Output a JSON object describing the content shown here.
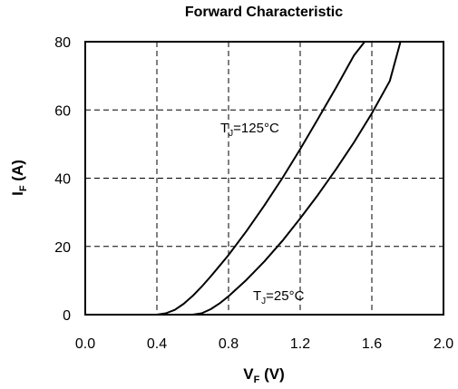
{
  "chart_data": {
    "type": "line",
    "title": "Forward Characteristic",
    "xlabel": {
      "main": "V",
      "sub": "F",
      "unit": " (V)"
    },
    "ylabel": {
      "main": "I",
      "sub": "F",
      "unit": " (A)"
    },
    "xlim": [
      0.0,
      2.0
    ],
    "ylim": [
      0,
      80
    ],
    "x_ticks": [
      "0.0",
      "0.4",
      "0.8",
      "1.2",
      "1.6",
      "2.0"
    ],
    "y_ticks": [
      "0",
      "20",
      "40",
      "60",
      "80"
    ],
    "grid": true,
    "grid_style": "dashed",
    "series": [
      {
        "name_main": "T",
        "name_sub": "J",
        "name_rest": "=125°C",
        "x": [
          0.4,
          0.45,
          0.5,
          0.55,
          0.6,
          0.65,
          0.7,
          0.75,
          0.8,
          0.9,
          1.0,
          1.1,
          1.2,
          1.3,
          1.4,
          1.5,
          1.56
        ],
        "y": [
          0,
          0.4,
          1.4,
          3.2,
          5.5,
          8.2,
          11.2,
          14.3,
          17.5,
          24.5,
          32,
          40,
          48.5,
          57.5,
          66.5,
          76,
          80
        ]
      },
      {
        "name_main": "T",
        "name_sub": "J",
        "name_rest": "=25°C",
        "x": [
          0.6,
          0.65,
          0.7,
          0.75,
          0.8,
          0.9,
          1.0,
          1.1,
          1.2,
          1.3,
          1.4,
          1.5,
          1.6,
          1.7,
          1.76
        ],
        "y": [
          0,
          0.4,
          1.6,
          3.3,
          5.4,
          10.2,
          15.6,
          21.6,
          28.2,
          35.2,
          42.6,
          50.5,
          59,
          68.5,
          80
        ]
      }
    ]
  }
}
